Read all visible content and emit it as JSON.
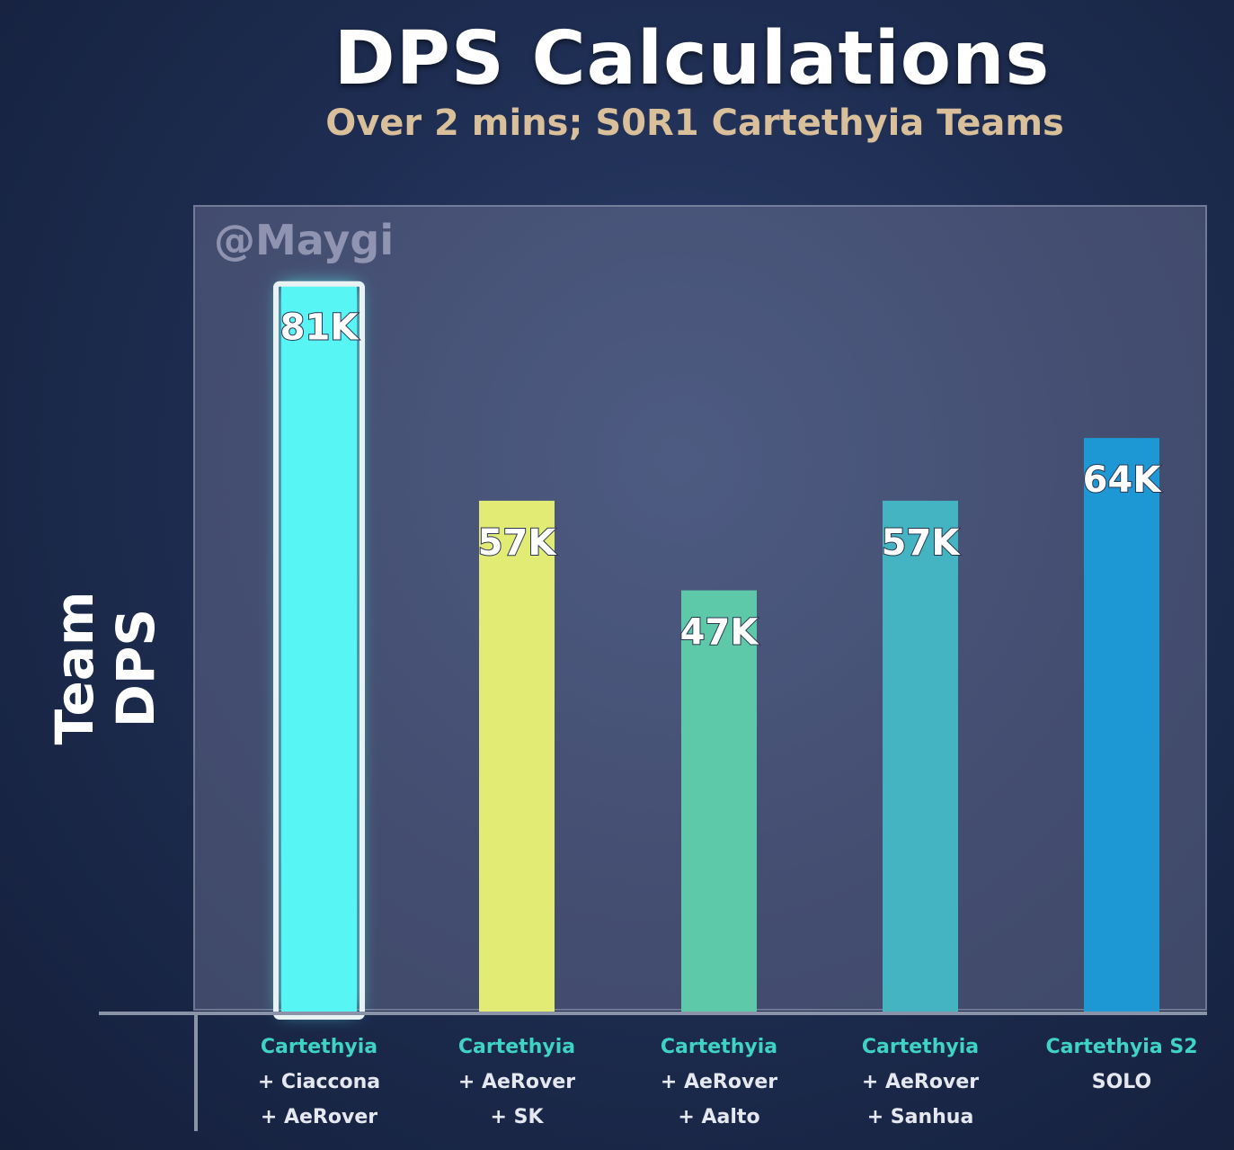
{
  "chart_data": {
    "type": "bar",
    "title": "DPS Calculations",
    "subtitle": "Over 2 mins; S0R1 Cartethyia Teams",
    "ylabel": "Team DPS",
    "watermark": "@Maygi",
    "ylim": [
      0,
      90
    ],
    "categories": [
      {
        "line1": "Cartethyia",
        "line2": "+ Ciaccona",
        "line3": "+ AeRover"
      },
      {
        "line1": "Cartethyia",
        "line2": "+ AeRover",
        "line3": "+ SK"
      },
      {
        "line1": "Cartethyia",
        "line2": "+ AeRover",
        "line3": "+ Aalto"
      },
      {
        "line1": "Cartethyia",
        "line2": "+ AeRover",
        "line3": "+ Sanhua"
      },
      {
        "line1": "Cartethyia S2",
        "line2": "SOLO",
        "line3": ""
      }
    ],
    "values": [
      81,
      57,
      47,
      57,
      64
    ],
    "data_labels": [
      "81K",
      "57K",
      "47K",
      "57K",
      "64K"
    ],
    "colors": [
      "#58f5f5",
      "#e2ec74",
      "#5ec9a8",
      "#45b4c2",
      "#1e98d4"
    ],
    "highlighted_index": 0
  }
}
